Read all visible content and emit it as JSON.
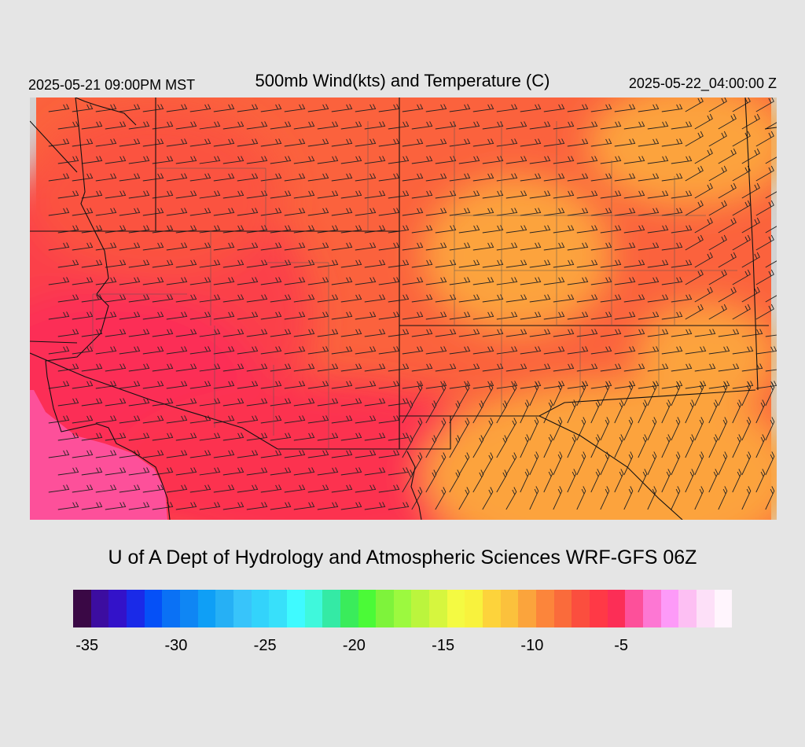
{
  "header": {
    "valid_local": "2025-05-21 09:00PM MST",
    "title": "500mb Wind(kts) and Temperature (C)",
    "valid_utc": "2025-05-22_04:00:00 Z"
  },
  "footer": {
    "credit": "U of A Dept of Hydrology and Atmospheric Sciences WRF-GFS 06Z"
  },
  "colorbar": {
    "colors": [
      "#3a0845",
      "#3c0da0",
      "#3312c9",
      "#1a2ae8",
      "#0550f7",
      "#0a71f5",
      "#0f86f4",
      "#0f9ff6",
      "#26b0f5",
      "#38c4fa",
      "#33d3fb",
      "#38e0fa",
      "#3ffaff",
      "#3ff8dc",
      "#34eaa5",
      "#3aec5b",
      "#4bfa37",
      "#7ef33b",
      "#9cf93f",
      "#bbf53d",
      "#d6f63e",
      "#f4fa42",
      "#f8f23d",
      "#fdd33b",
      "#fbc13c",
      "#fba43c",
      "#fc853b",
      "#fa6b3b",
      "#fb4e3e",
      "#ff3946",
      "#fc2e56",
      "#fd509a",
      "#fd77d3",
      "#fd9af8",
      "#fdbff3",
      "#fde0f8",
      "#fff5fd"
    ],
    "tick_labels": [
      "-35",
      "-30",
      "-25",
      "-20",
      "-15",
      "-10",
      "-5"
    ]
  }
}
